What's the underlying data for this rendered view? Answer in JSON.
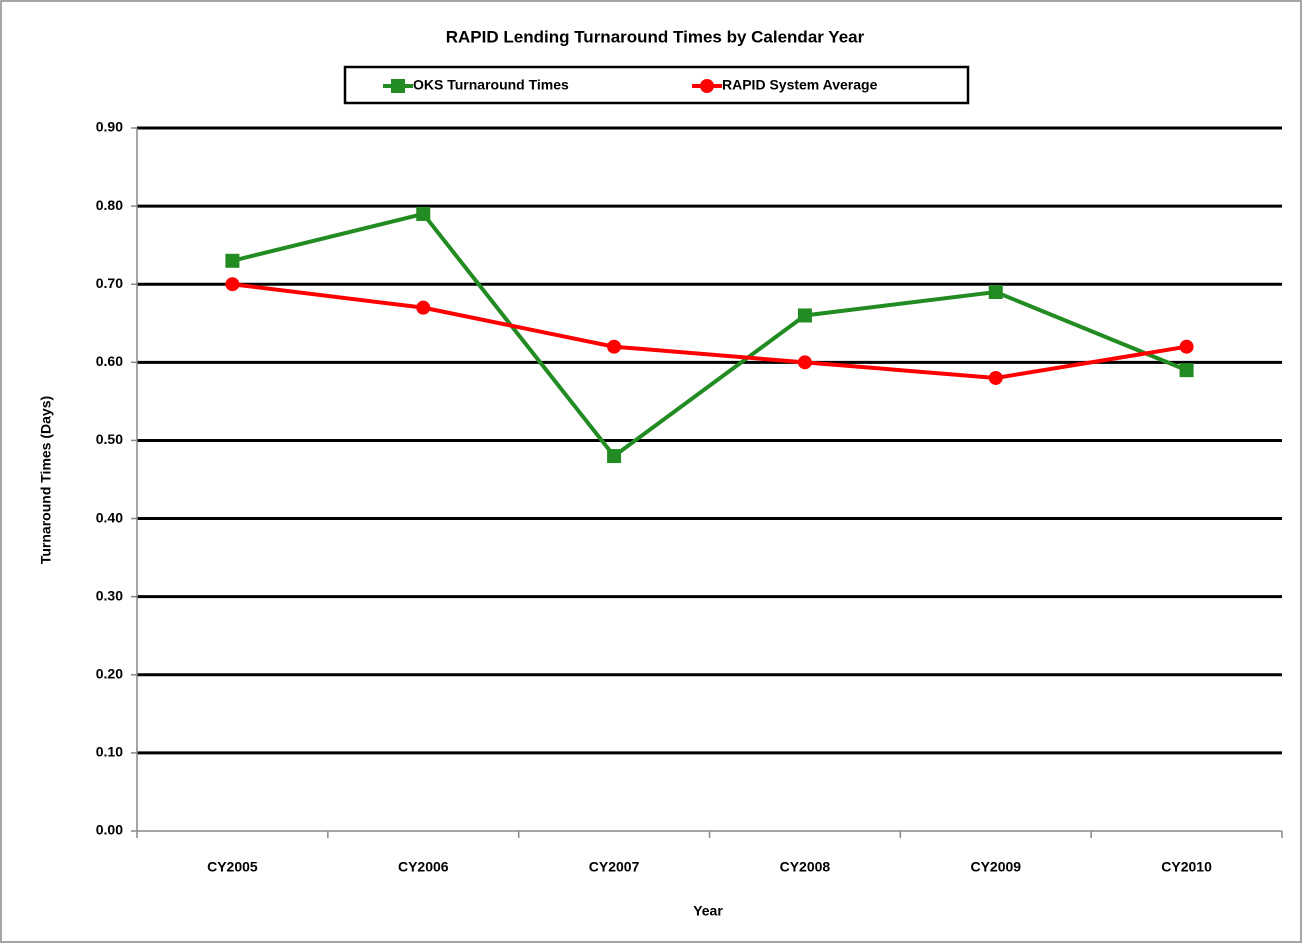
{
  "chart_data": {
    "type": "line",
    "title": "RAPID Lending Turnaround Times by Calendar Year",
    "x_label": "Year",
    "y_label": "Turnaround Times (Days)",
    "categories": [
      "CY2005",
      "CY2006",
      "CY2007",
      "CY2008",
      "CY2009",
      "CY2010"
    ],
    "series": [
      {
        "name": "OKS Turnaround Times",
        "color": "#228b22",
        "marker": "square",
        "values": [
          0.73,
          0.79,
          0.48,
          0.66,
          0.69,
          0.59
        ]
      },
      {
        "name": "RAPID System Average",
        "color": "#ff0000",
        "marker": "circle",
        "values": [
          0.7,
          0.67,
          0.62,
          0.6,
          0.58,
          0.62
        ]
      }
    ],
    "ylim": [
      0,
      0.9
    ],
    "yticks": [
      {
        "value": 0,
        "label": "0.00"
      },
      {
        "value": 0.1,
        "label": "0.10"
      },
      {
        "value": 0.2,
        "label": "0.20"
      },
      {
        "value": 0.3,
        "label": "0.30"
      },
      {
        "value": 0.4,
        "label": "0.40"
      },
      {
        "value": 0.5,
        "label": "0.50"
      },
      {
        "value": 0.6,
        "label": "0.60"
      },
      {
        "value": 0.7,
        "label": "0.70"
      },
      {
        "value": 0.8,
        "label": "0.80"
      },
      {
        "value": 0.9,
        "label": "0.90"
      }
    ],
    "grid": true,
    "legend": "top"
  }
}
